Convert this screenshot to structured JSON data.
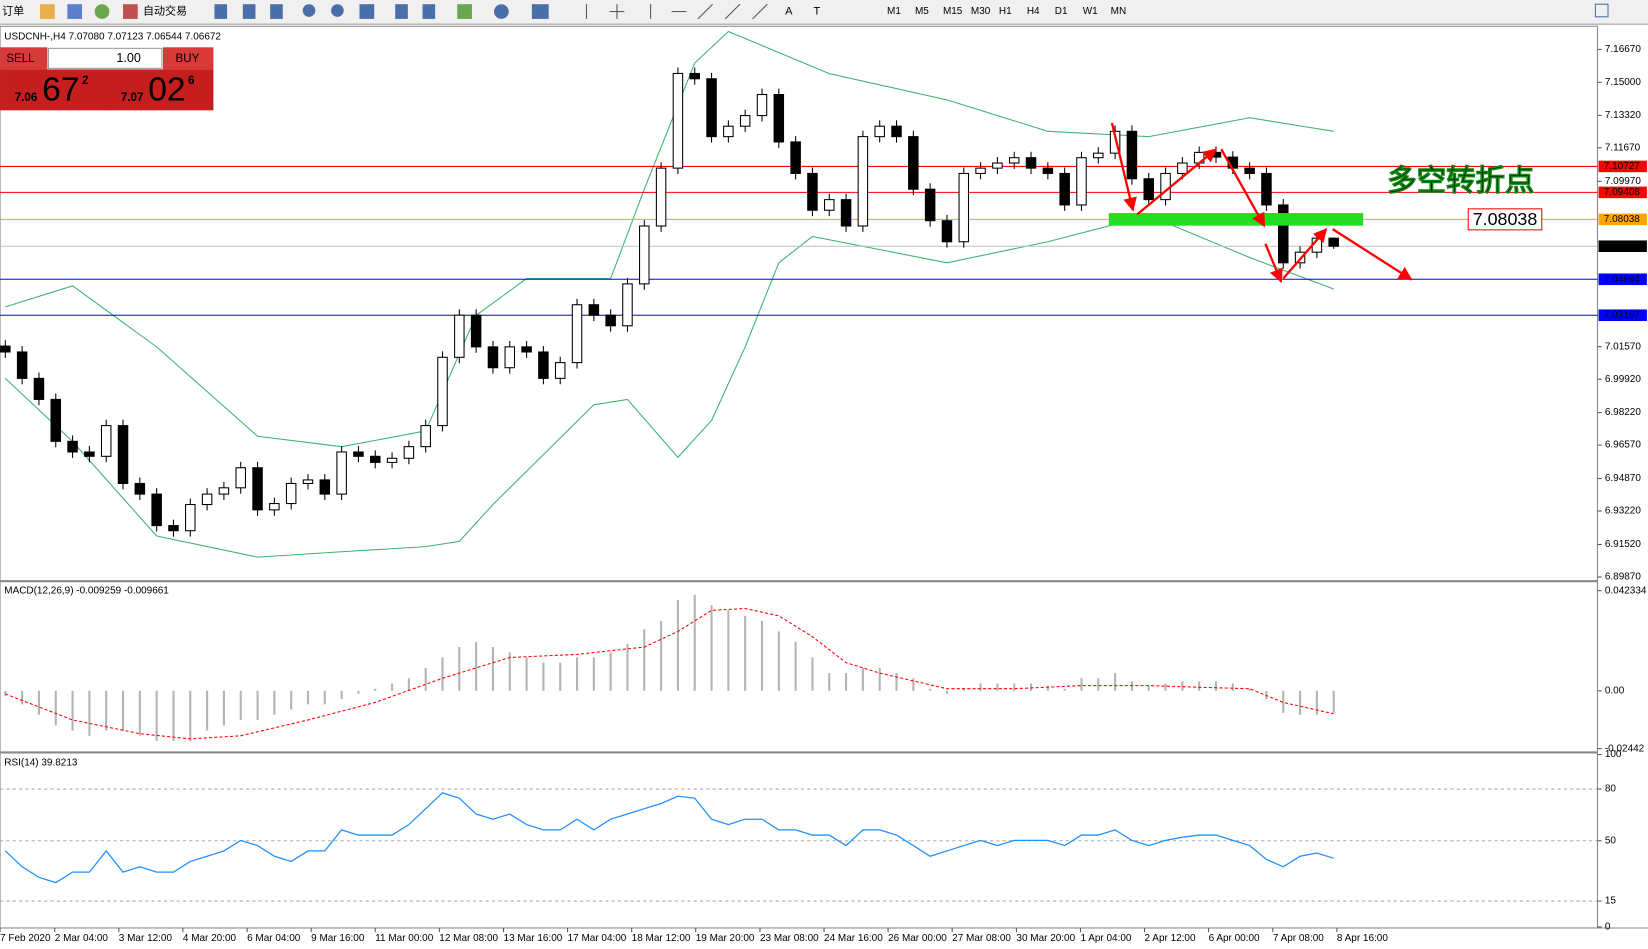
{
  "toolbar": {
    "new_order": "订单",
    "auto_trading": "自动交易",
    "tools": [
      "A",
      "T"
    ],
    "timeframes": [
      "M1",
      "M5",
      "M15",
      "M30",
      "H1",
      "H4",
      "D1",
      "W1",
      "MN"
    ]
  },
  "trade_panel": {
    "sell": "SELL",
    "buy": "BUY",
    "lots": "1.00",
    "sell_price": {
      "prefix": "7.06",
      "big": "67",
      "sup": "2"
    },
    "buy_price": {
      "prefix": "7.07",
      "big": "02",
      "sup": "6"
    }
  },
  "chart_data": [
    {
      "type": "candlestick",
      "title": "USDCNH-,H4  7.07080 7.07123 7.06544 7.06672",
      "annotation": "多空转折点",
      "candle_color": "#000000",
      "up_fill": "#ffffff",
      "xlim": [
        -0.3125,
        94.6875
      ],
      "xticks": [
        {
          "value": -0.3125,
          "label": "7 Feb 2020"
        },
        {
          "value": 2.94,
          "label": "2 Mar 04:00"
        },
        {
          "value": 6.75,
          "label": "3 Mar 12:00"
        },
        {
          "value": 10.56,
          "label": "4 Mar 20:00"
        },
        {
          "value": 14.38,
          "label": "6 Mar 04:00"
        },
        {
          "value": 18.19,
          "label": "9 Mar 16:00"
        },
        {
          "value": 22,
          "label": "11 Mar 00:00"
        },
        {
          "value": 25.81,
          "label": "12 Mar 08:00"
        },
        {
          "value": 29.63,
          "label": "13 Mar 16:00"
        },
        {
          "value": 33.44,
          "label": "17 Mar 04:00"
        },
        {
          "value": 37.25,
          "label": "18 Mar 12:00"
        },
        {
          "value": 41.06,
          "label": "19 Mar 20:00"
        },
        {
          "value": 44.88,
          "label": "23 Mar 08:00"
        },
        {
          "value": 48.69,
          "label": "24 Mar 16:00"
        },
        {
          "value": 52.5,
          "label": "26 Mar 00:00"
        },
        {
          "value": 56.31,
          "label": "27 Mar 08:00"
        },
        {
          "value": 60.13,
          "label": "30 Mar 20:00"
        },
        {
          "value": 63.94,
          "label": "1 Apr 04:00"
        },
        {
          "value": 67.75,
          "label": "2 Apr 12:00"
        },
        {
          "value": 71.56,
          "label": "6 Apr 00:00"
        },
        {
          "value": 75.38,
          "label": "7 Apr 08:00"
        },
        {
          "value": 79.19,
          "label": "8 Apr 16:00"
        }
      ],
      "ylim": [
        6.8971,
        7.1774
      ],
      "yticks": [
        {
          "value": 7.1667,
          "label": "7.16670"
        },
        {
          "value": 7.15,
          "label": "7.15000"
        },
        {
          "value": 7.1332,
          "label": "7.13320"
        },
        {
          "value": 7.1167,
          "label": "7.11670"
        },
        {
          "value": 7.0997,
          "label": "7.09970"
        },
        {
          "value": 7.0157,
          "label": "7.01570"
        },
        {
          "value": 6.9992,
          "label": "6.99920"
        },
        {
          "value": 6.9822,
          "label": "6.98220"
        },
        {
          "value": 6.9657,
          "label": "6.96570"
        },
        {
          "value": 6.9487,
          "label": "6.94870"
        },
        {
          "value": 6.9322,
          "label": "6.93220"
        },
        {
          "value": 6.9152,
          "label": "6.91520"
        },
        {
          "value": 6.8987,
          "label": "6.89870"
        }
      ],
      "open": [
        7.016,
        7.013,
        6.9996,
        6.9889,
        6.9676,
        6.9622,
        6.96,
        6.9756,
        6.9462,
        6.9408,
        6.9248,
        6.9222,
        6.9355,
        6.9408,
        6.944,
        6.9542,
        6.9328,
        6.936,
        6.9462,
        6.948,
        6.9408,
        6.9622,
        6.96,
        6.9569,
        6.959,
        6.9649,
        6.9756,
        7.0103,
        7.0317,
        7.0156,
        7.005,
        7.0156,
        7.013,
        6.9996,
        7.0076,
        7.037,
        7.0317,
        7.0263,
        7.0476,
        7.077,
        7.1064,
        7.1545,
        7.1518,
        7.1224,
        7.1277,
        7.1331,
        7.1438,
        7.1197,
        7.1037,
        7.085,
        7.0904,
        7.077,
        7.1224,
        7.1277,
        7.1224,
        7.0957,
        7.0797,
        7.069,
        7.1037,
        7.1064,
        7.109,
        7.1117,
        7.1064,
        7.1037,
        7.0877,
        7.1117,
        7.114,
        7.1251,
        7.101,
        7.0904,
        7.1037,
        7.109,
        7.1144,
        7.112,
        7.1064,
        7.1037,
        7.0877,
        7.0583,
        7.0637,
        7.0708
      ],
      "high": [
        7.019,
        7.016,
        7.0026,
        6.9919,
        6.9706,
        6.9652,
        6.9786,
        6.9786,
        6.9492,
        6.9438,
        6.9278,
        6.9385,
        6.9438,
        6.947,
        6.9572,
        6.9572,
        6.939,
        6.9492,
        6.951,
        6.951,
        6.9652,
        6.9652,
        6.963,
        6.962,
        6.9679,
        6.9786,
        7.0133,
        7.0347,
        7.0347,
        7.0186,
        7.0186,
        7.0186,
        7.016,
        7.0106,
        7.04,
        7.04,
        7.0347,
        7.0506,
        7.08,
        7.1094,
        7.1575,
        7.1575,
        7.1548,
        7.1307,
        7.1361,
        7.1468,
        7.1468,
        7.1227,
        7.1067,
        7.0934,
        7.0934,
        7.1254,
        7.1307,
        7.1307,
        7.1254,
        7.0987,
        7.0827,
        7.1067,
        7.1094,
        7.112,
        7.1147,
        7.1147,
        7.1094,
        7.1067,
        7.1147,
        7.117,
        7.1281,
        7.1281,
        7.104,
        7.1067,
        7.112,
        7.1174,
        7.1174,
        7.115,
        7.1094,
        7.1067,
        7.0907,
        7.0667,
        7.0738,
        7.0712
      ],
      "low": [
        7.01,
        6.9966,
        6.9859,
        6.9646,
        6.9592,
        6.957,
        6.957,
        6.9432,
        6.9378,
        6.9218,
        6.9192,
        6.9192,
        6.9325,
        6.9378,
        6.941,
        6.9298,
        6.9298,
        6.933,
        6.9432,
        6.9378,
        6.9378,
        6.957,
        6.9539,
        6.9539,
        6.956,
        6.9619,
        6.9726,
        7.0073,
        7.0126,
        7.002,
        7.002,
        7.01,
        6.9966,
        6.9966,
        7.0046,
        7.0287,
        7.0233,
        7.0233,
        7.0446,
        7.074,
        7.1034,
        7.1488,
        7.1194,
        7.1194,
        7.1247,
        7.1301,
        7.1167,
        7.1007,
        7.082,
        7.082,
        7.074,
        7.074,
        7.1194,
        7.1194,
        7.0927,
        7.0767,
        7.066,
        7.066,
        7.1007,
        7.1034,
        7.106,
        7.1034,
        7.1007,
        7.0847,
        7.0847,
        7.1087,
        7.111,
        7.098,
        7.0874,
        7.0874,
        7.1007,
        7.106,
        7.109,
        7.1034,
        7.1007,
        7.0847,
        7.0553,
        7.0553,
        7.0607,
        7.0654
      ],
      "close": [
        7.013,
        6.9996,
        6.9889,
        6.9676,
        6.9622,
        6.96,
        6.9756,
        6.9462,
        6.9408,
        6.9248,
        6.9222,
        6.9355,
        6.9408,
        6.944,
        6.9542,
        6.9328,
        6.936,
        6.9462,
        6.948,
        6.9408,
        6.9622,
        6.96,
        6.9569,
        6.959,
        6.9649,
        6.9756,
        7.0103,
        7.0317,
        7.0156,
        7.005,
        7.0156,
        7.013,
        6.9996,
        7.0076,
        7.037,
        7.0317,
        7.0263,
        7.0476,
        7.077,
        7.1064,
        7.1545,
        7.1518,
        7.1224,
        7.1277,
        7.1331,
        7.1438,
        7.1197,
        7.1037,
        7.085,
        7.0904,
        7.077,
        7.1224,
        7.1277,
        7.1224,
        7.0957,
        7.0797,
        7.069,
        7.1037,
        7.1064,
        7.109,
        7.1117,
        7.1064,
        7.1037,
        7.0877,
        7.1117,
        7.114,
        7.1251,
        7.101,
        7.0904,
        7.1037,
        7.109,
        7.1144,
        7.112,
        7.1064,
        7.1037,
        7.0877,
        7.0583,
        7.0637,
        7.0708,
        7.0667
      ],
      "bands": [
        {
          "color": "#3cb371",
          "x": [
            0,
            4,
            9,
            15,
            20,
            25,
            28,
            31,
            36,
            38,
            41,
            43,
            49,
            56,
            62,
            68,
            74,
            79
          ],
          "values": [
            7.0359,
            7.0466,
            7.0156,
            6.9702,
            6.9649,
            6.9729,
            7.0316,
            7.0503,
            7.0503,
            7.0957,
            7.1598,
            7.1758,
            7.1544,
            7.1411,
            7.1251,
            7.1224,
            7.132,
            7.1251
          ]
        },
        {
          "color": "#3cb371",
          "x": [
            0,
            4,
            9,
            15,
            20,
            25,
            27,
            29,
            35,
            37,
            40,
            42,
            44,
            46,
            48,
            56,
            62,
            68,
            74,
            79
          ],
          "values": [
            6.9996,
            6.9675,
            6.9195,
            6.9088,
            6.9115,
            6.9141,
            6.9168,
            6.9355,
            6.9862,
            6.9889,
            6.9595,
            6.9782,
            7.0156,
            7.0583,
            7.0717,
            7.0583,
            7.069,
            7.0823,
            7.061,
            7.045
          ]
        }
      ],
      "hlines": [
        {
          "value": 7.10727,
          "color": "#ff0000",
          "tag": "#ff0000"
        },
        {
          "value": 7.09408,
          "color": "#ff0000",
          "tag": "#ff0000"
        },
        {
          "value": 7.08038,
          "color": "#ffa500",
          "tag": "#ffa500"
        },
        {
          "value": 7.06672,
          "color": "#c0c0c0",
          "tag": "#000000"
        },
        {
          "value": 7.04994,
          "color": "#0000ff",
          "tag": "#0000ff"
        },
        {
          "value": 7.03167,
          "color": "#0000ff",
          "tag": "#0000ff"
        }
      ]
    },
    {
      "type": "macd",
      "title": "MACD(12,26,9) -0.009259 -0.009661",
      "color": "#b4b4b4",
      "ylim": [
        -0.0256,
        0.0459
      ],
      "yticks": [
        0.042334,
        {
          "value": 0,
          "label": "0.00"
        },
        -0.02442
      ],
      "values": [
        -0.0022,
        -0.0057,
        -0.0101,
        -0.0146,
        -0.0168,
        -0.019,
        -0.0168,
        -0.0168,
        -0.019,
        -0.0212,
        -0.0212,
        -0.0212,
        -0.0168,
        -0.0146,
        -0.0123,
        -0.0123,
        -0.0101,
        -0.0079,
        -0.0057,
        -0.0057,
        -0.0035,
        -0.0013,
        0.0009,
        0.0031,
        0.0053,
        0.0097,
        0.0141,
        0.0185,
        0.0207,
        0.0185,
        0.0163,
        0.0141,
        0.0119,
        0.0119,
        0.0141,
        0.0141,
        0.0163,
        0.0198,
        0.026,
        0.0295,
        0.0384,
        0.0406,
        0.0362,
        0.034,
        0.0317,
        0.0295,
        0.0251,
        0.0207,
        0.0141,
        0.0075,
        0.0075,
        0.0097,
        0.0097,
        0.0075,
        0.0053,
        0.0009,
        -0.0013,
        0.0009,
        0.0031,
        0.0031,
        0.0031,
        0.0031,
        0.0022,
        0.0009,
        0.0053,
        0.0053,
        0.0075,
        0.004,
        0.0022,
        0.0031,
        0.004,
        0.004,
        0.004,
        0.0031,
        0.0009,
        -0.0035,
        -0.0093,
        -0.0101,
        -0.0101,
        -0.0093
      ],
      "signal": {
        "color": "#ff0000",
        "x": [
          0,
          4,
          8,
          11,
          14,
          18,
          22,
          26,
          30,
          34,
          38,
          40,
          42,
          44,
          46,
          48,
          50,
          52,
          56,
          60,
          64,
          68,
          72,
          74,
          76,
          79
        ],
        "values": [
          -0.0013,
          -0.0123,
          -0.0181,
          -0.0203,
          -0.019,
          -0.0123,
          -0.0049,
          0.0053,
          0.0141,
          0.0154,
          0.0185,
          0.0251,
          0.034,
          0.0348,
          0.0317,
          0.0229,
          0.0119,
          0.0075,
          0.0009,
          0.0009,
          0.0022,
          0.0022,
          0.0013,
          0.0009,
          -0.0049,
          -0.0097
        ]
      }
    },
    {
      "type": "line",
      "title": "RSI(14) 39.8213",
      "color": "#1e90ff",
      "grid": true,
      "ylim": [
        0,
        100
      ],
      "yticks": [
        100,
        80,
        50,
        15,
        0
      ],
      "values": [
        44.1,
        34.9,
        28.8,
        25.7,
        31.8,
        31.8,
        44.1,
        31.8,
        34.9,
        31.8,
        31.8,
        38.0,
        41.0,
        44.1,
        50.2,
        47.2,
        41.0,
        38.0,
        44.1,
        44.1,
        56.3,
        53.3,
        53.3,
        53.3,
        59.4,
        68.6,
        77.8,
        74.7,
        65.5,
        62.5,
        65.5,
        59.4,
        56.3,
        56.3,
        62.5,
        56.3,
        62.5,
        65.5,
        68.6,
        71.6,
        75.9,
        74.7,
        62.5,
        59.4,
        62.5,
        62.5,
        56.3,
        56.3,
        53.3,
        53.3,
        47.2,
        56.3,
        56.3,
        53.3,
        47.2,
        41.0,
        44.1,
        47.2,
        50.2,
        47.2,
        50.2,
        50.2,
        50.2,
        47.2,
        53.3,
        53.3,
        56.3,
        50.2,
        47.2,
        50.2,
        52.0,
        53.3,
        53.3,
        50.2,
        47.2,
        39.2,
        34.9,
        41.0,
        42.9,
        39.8
      ]
    }
  ]
}
